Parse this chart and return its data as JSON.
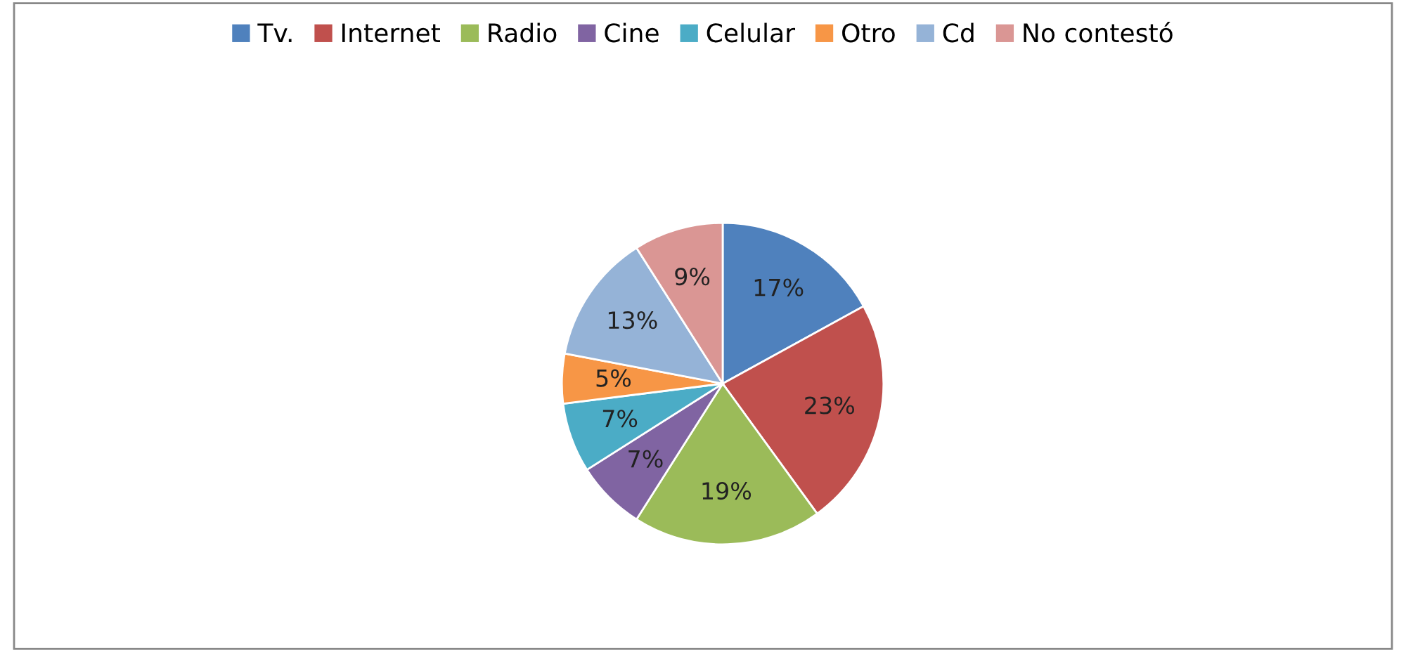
{
  "chart_data": {
    "type": "pie",
    "categories": [
      "Tv.",
      "Internet",
      "Radio",
      "Cine",
      "Celular",
      "Otro",
      "Cd",
      "No contestó"
    ],
    "values": [
      17,
      23,
      19,
      7,
      7,
      5,
      13,
      9
    ],
    "colors": [
      "#4f81bd",
      "#c0504d",
      "#9bbb59",
      "#8064a2",
      "#4bacc6",
      "#f79646",
      "#95b3d7",
      "#da9694"
    ],
    "value_labels": [
      "17%",
      "23%",
      "19%",
      "7%",
      "7%",
      "5%",
      "13%",
      "9%"
    ],
    "legend": "top"
  }
}
